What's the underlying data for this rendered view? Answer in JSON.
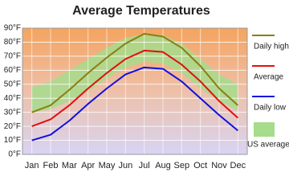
{
  "chart_data": {
    "type": "line",
    "title": "Average Temperatures",
    "categories": [
      "Jan",
      "Feb",
      "Mar",
      "Apr",
      "May",
      "Jun",
      "Jul",
      "Aug",
      "Sep",
      "Oct",
      "Nov",
      "Dec"
    ],
    "series": [
      {
        "name": "US average",
        "color": "#a6dc8c",
        "values": [
          48,
          52,
          60,
          68,
          76,
          83,
          86,
          85,
          79,
          68,
          57,
          50
        ],
        "low": [
          30,
          32,
          38,
          45,
          54,
          62,
          66,
          65,
          58,
          47,
          38,
          31
        ]
      },
      {
        "name": "Daily high",
        "color": "#8a7e10",
        "values": [
          30,
          35,
          46,
          58,
          69,
          79,
          86,
          84,
          76,
          63,
          47,
          35
        ]
      },
      {
        "name": "Average",
        "color": "#e01010",
        "values": [
          20,
          25,
          35,
          47,
          58,
          68,
          74,
          73,
          64,
          52,
          38,
          26
        ]
      },
      {
        "name": "Daily low",
        "color": "#1010e0",
        "values": [
          10,
          14,
          24,
          36,
          47,
          57,
          62,
          61,
          52,
          40,
          28,
          17
        ]
      }
    ],
    "ylim": [
      0,
      90
    ],
    "yticks": [
      {
        "value": 0,
        "label": "0°F"
      },
      {
        "value": 10,
        "label": "10°F"
      },
      {
        "value": 20,
        "label": "20°F"
      },
      {
        "value": 30,
        "label": "30°F"
      },
      {
        "value": 40,
        "label": "40°F"
      },
      {
        "value": 50,
        "label": "50°F"
      },
      {
        "value": 60,
        "label": "60°F"
      },
      {
        "value": 70,
        "label": "70°F"
      },
      {
        "value": 80,
        "label": "80°F"
      },
      {
        "value": 90,
        "label": "90°F"
      }
    ],
    "grid": true
  }
}
